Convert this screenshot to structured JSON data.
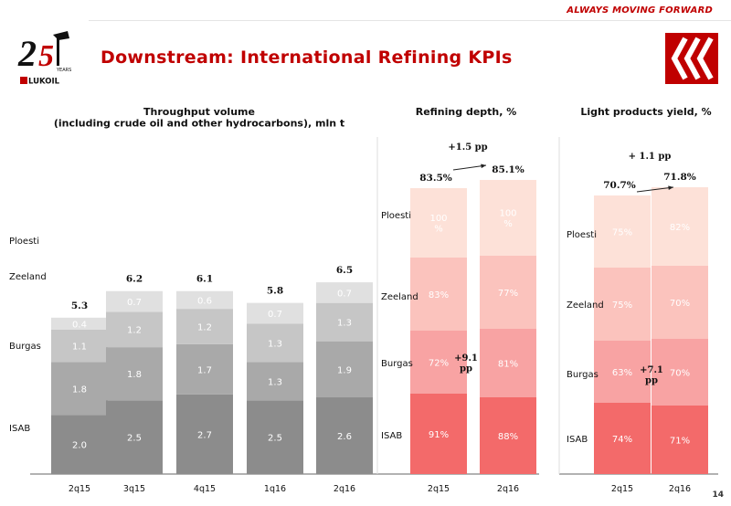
{
  "header": {
    "tagline": "ALWAYS MOVING FORWARD",
    "title": "Downstream: International Refining KPIs",
    "logo_text": "LUKOIL",
    "logo_years": "YEARS",
    "page_number": "14",
    "accent_color": "#c00000"
  },
  "chart_data": [
    {
      "type": "bar",
      "stacked": true,
      "title": "Throughput volume\n(including crude oil and other hydrocarbons), mln t",
      "categories": [
        "2q15",
        "3q15",
        "4q15",
        "1q16",
        "2q16"
      ],
      "totals": [
        "5.3",
        "6.2",
        "6.1",
        "5.8",
        "6.5"
      ],
      "series": [
        {
          "name": "ISAB",
          "values": [
            2.0,
            2.5,
            2.7,
            2.5,
            2.6
          ],
          "labels": [
            "2.0",
            "2.5",
            "2.7",
            "2.5",
            "2.6"
          ],
          "color": "#8c8c8c"
        },
        {
          "name": "Burgas",
          "values": [
            1.8,
            1.8,
            1.7,
            1.3,
            1.9
          ],
          "labels": [
            "1.8",
            "1.8",
            "1.7",
            "1.3",
            "1.9"
          ],
          "color": "#a9a9a9"
        },
        {
          "name": "Zeeland",
          "values": [
            1.1,
            1.2,
            1.2,
            1.3,
            1.3
          ],
          "labels": [
            "1.1",
            "1.2",
            "1.2",
            "1.3",
            "1.3"
          ],
          "color": "#c6c6c6"
        },
        {
          "name": "Ploesti",
          "values": [
            0.4,
            0.7,
            0.6,
            0.7,
            0.7
          ],
          "labels": [
            "0.4",
            "0.7",
            "0.6",
            "0.7",
            "0.7"
          ],
          "color": "#e0e0e0"
        }
      ]
    },
    {
      "type": "bar",
      "stacked": true,
      "title": "Refining depth, %",
      "categories": [
        "2q15",
        "2q16"
      ],
      "totals": [
        "83.5%",
        "85.1%"
      ],
      "change_label": "+1.5 pp",
      "inner_change_label": "+9.1\npp",
      "series": [
        {
          "name": "ISAB",
          "labels": [
            "91%",
            "88%"
          ],
          "color": "#f36a6a"
        },
        {
          "name": "Burgas",
          "labels": [
            "72%",
            "81%"
          ],
          "color": "#f8a3a3"
        },
        {
          "name": "Zeeland",
          "labels": [
            "83%",
            "77%"
          ],
          "color": "#fbc3bd"
        },
        {
          "name": "Ploesti",
          "labels": [
            "100\n%",
            "100\n%"
          ],
          "color": "#fde1d8"
        }
      ]
    },
    {
      "type": "bar",
      "stacked": true,
      "title": "Light products yield, %",
      "categories": [
        "2q15",
        "2q16"
      ],
      "totals": [
        "70.7%",
        "71.8%"
      ],
      "change_label": "+ 1.1 pp",
      "inner_change_label": "+7.1\npp",
      "series": [
        {
          "name": "ISAB",
          "labels": [
            "74%",
            "71%"
          ],
          "color": "#f36a6a"
        },
        {
          "name": "Burgas",
          "labels": [
            "63%",
            "70%"
          ],
          "color": "#f8a3a3"
        },
        {
          "name": "Zeeland",
          "labels": [
            "75%",
            "70%"
          ],
          "color": "#fbc3bd"
        },
        {
          "name": "Ploesti",
          "labels": [
            "75%",
            "82%"
          ],
          "color": "#fde1d8"
        }
      ]
    }
  ]
}
